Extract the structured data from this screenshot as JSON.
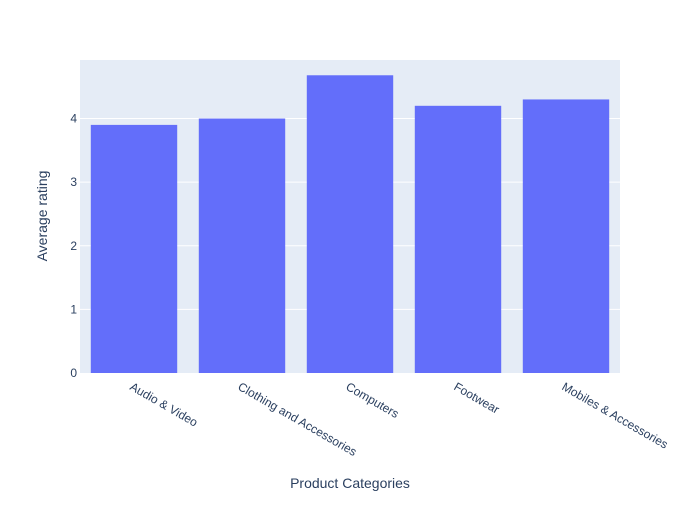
{
  "chart_data": {
    "type": "bar",
    "title": "",
    "xlabel": "Product Categories",
    "ylabel": "Average rating",
    "categories": [
      "Audio & Video",
      "Clothing and Accessories",
      "Computers",
      "Footwear",
      "Mobiles & Accessories"
    ],
    "values": [
      3.9,
      4.0,
      4.68,
      4.2,
      4.3
    ],
    "ylim": [
      0,
      4.92
    ],
    "yticks": [
      0,
      1,
      2,
      3,
      4
    ],
    "grid": true,
    "legend": "none",
    "colors": {
      "bar": "#636efa",
      "plot_bg": "#e5ecf6",
      "grid": "#ffffff",
      "text": "#2a3f5f"
    }
  }
}
